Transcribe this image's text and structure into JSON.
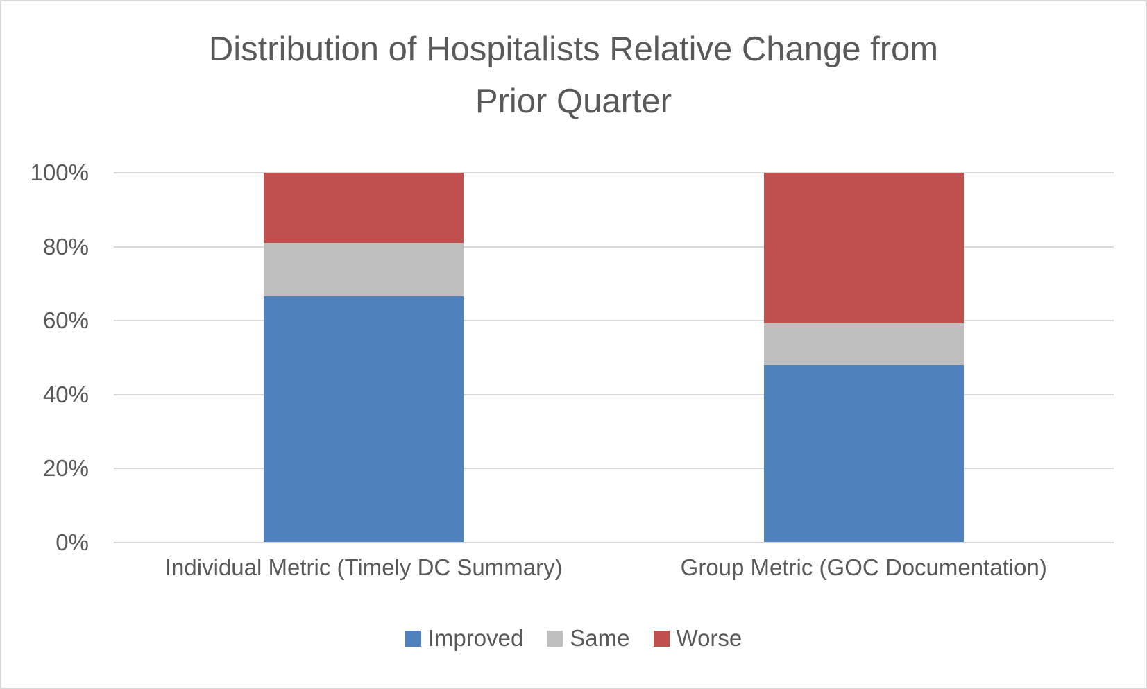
{
  "chart_data": {
    "type": "bar",
    "stacked": true,
    "percent_stacked": true,
    "title": "Distribution of Hospitalists Relative Change from Prior Quarter",
    "title_lines": [
      "Distribution of Hospitalists Relative Change from",
      "Prior Quarter"
    ],
    "categories": [
      "Individual Metric (Timely DC Summary)",
      "Group Metric (GOC Documentation)"
    ],
    "series": [
      {
        "name": "Improved",
        "color": "#4F81BD",
        "values": [
          66.7,
          48.1
        ]
      },
      {
        "name": "Same",
        "color": "#BFBFBF",
        "values": [
          14.3,
          11.1
        ]
      },
      {
        "name": "Worse",
        "color": "#C0504D",
        "values": [
          19.0,
          40.8
        ]
      }
    ],
    "xlabel": "",
    "ylabel": "",
    "ylim": [
      0,
      100
    ],
    "y_axis": {
      "unit": "percent",
      "ticks": [
        {
          "label": "0%",
          "value": 0
        },
        {
          "label": "20%",
          "value": 20
        },
        {
          "label": "40%",
          "value": 40
        },
        {
          "label": "60%",
          "value": 60
        },
        {
          "label": "80%",
          "value": 80
        },
        {
          "label": "100%",
          "value": 100
        }
      ]
    },
    "grid": true,
    "legend_position": "bottom"
  },
  "colors": {
    "text": "#595959",
    "gridline": "#D9D9D9",
    "axis_line": "#D5D5D5",
    "background": "#FFFFFF",
    "frame_border": "#D9D9D9"
  }
}
